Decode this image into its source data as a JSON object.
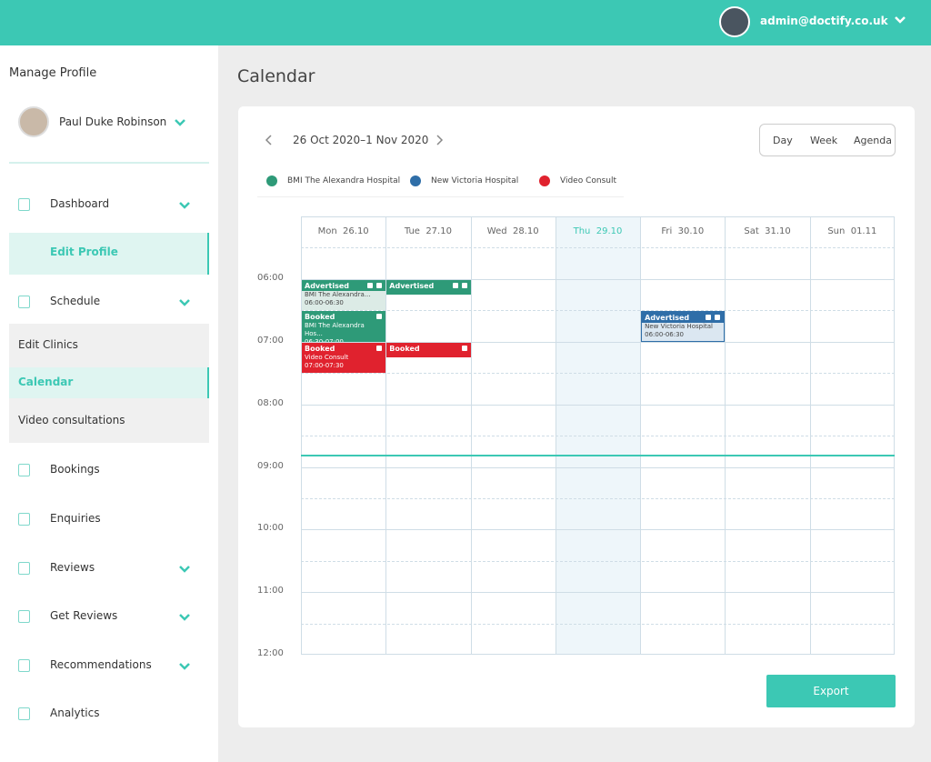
{
  "header": {
    "user": "admin@doctify.co.uk"
  },
  "sidebar": {
    "title": "Manage Profile",
    "profile_name": "Paul Duke Robinson",
    "nav": [
      {
        "label": "Dashboard",
        "chevron": true
      },
      {
        "label": "Edit Profile"
      },
      {
        "label": "Schedule",
        "chevron": true
      },
      {
        "label": "Edit Clinics"
      },
      {
        "label": "Calendar"
      },
      {
        "label": "Video consultations"
      },
      {
        "label": "Bookings"
      },
      {
        "label": "Enquiries"
      },
      {
        "label": "Reviews",
        "chevron": true
      },
      {
        "label": "Get Reviews",
        "chevron": true
      },
      {
        "label": "Recommendations",
        "chevron": true
      },
      {
        "label": "Analytics"
      }
    ]
  },
  "main": {
    "title": "Calendar",
    "date_range": "26 Oct 2020–1 Nov 2020",
    "views": [
      "Day",
      "Week",
      "Agenda"
    ],
    "legend": [
      {
        "label": "BMI The Alexandra Hospital",
        "color": "#2e9a78"
      },
      {
        "label": "New Victoria Hospital",
        "color": "#2f6ea8"
      },
      {
        "label": "Video Consult",
        "color": "#e0222e"
      }
    ],
    "days": [
      "Mon  26.10",
      "Tue  27.10",
      "Wed  28.10",
      "Thu  29.10",
      "Fri  30.10",
      "Sat  31.10",
      "Sun  01.11"
    ],
    "times": [
      "06:00",
      "07:00",
      "08:00",
      "09:00",
      "10:00",
      "11:00",
      "12:00"
    ],
    "events": [
      {
        "status": "Advertised",
        "location": "BMI The Alexandra...",
        "time": "06:00-06:30"
      },
      {
        "status": "Advertised"
      },
      {
        "status": "Booked",
        "location": "BMI The Alexandra Hos...",
        "time": "06:30-07:00"
      },
      {
        "status": "Advertised",
        "location": "New Victoria Hospital",
        "time": "06:00-06:30"
      },
      {
        "status": "Booked",
        "location": "Video Consult",
        "time": "07:00-07:30"
      },
      {
        "status": "Booked"
      }
    ],
    "export": "Export"
  }
}
